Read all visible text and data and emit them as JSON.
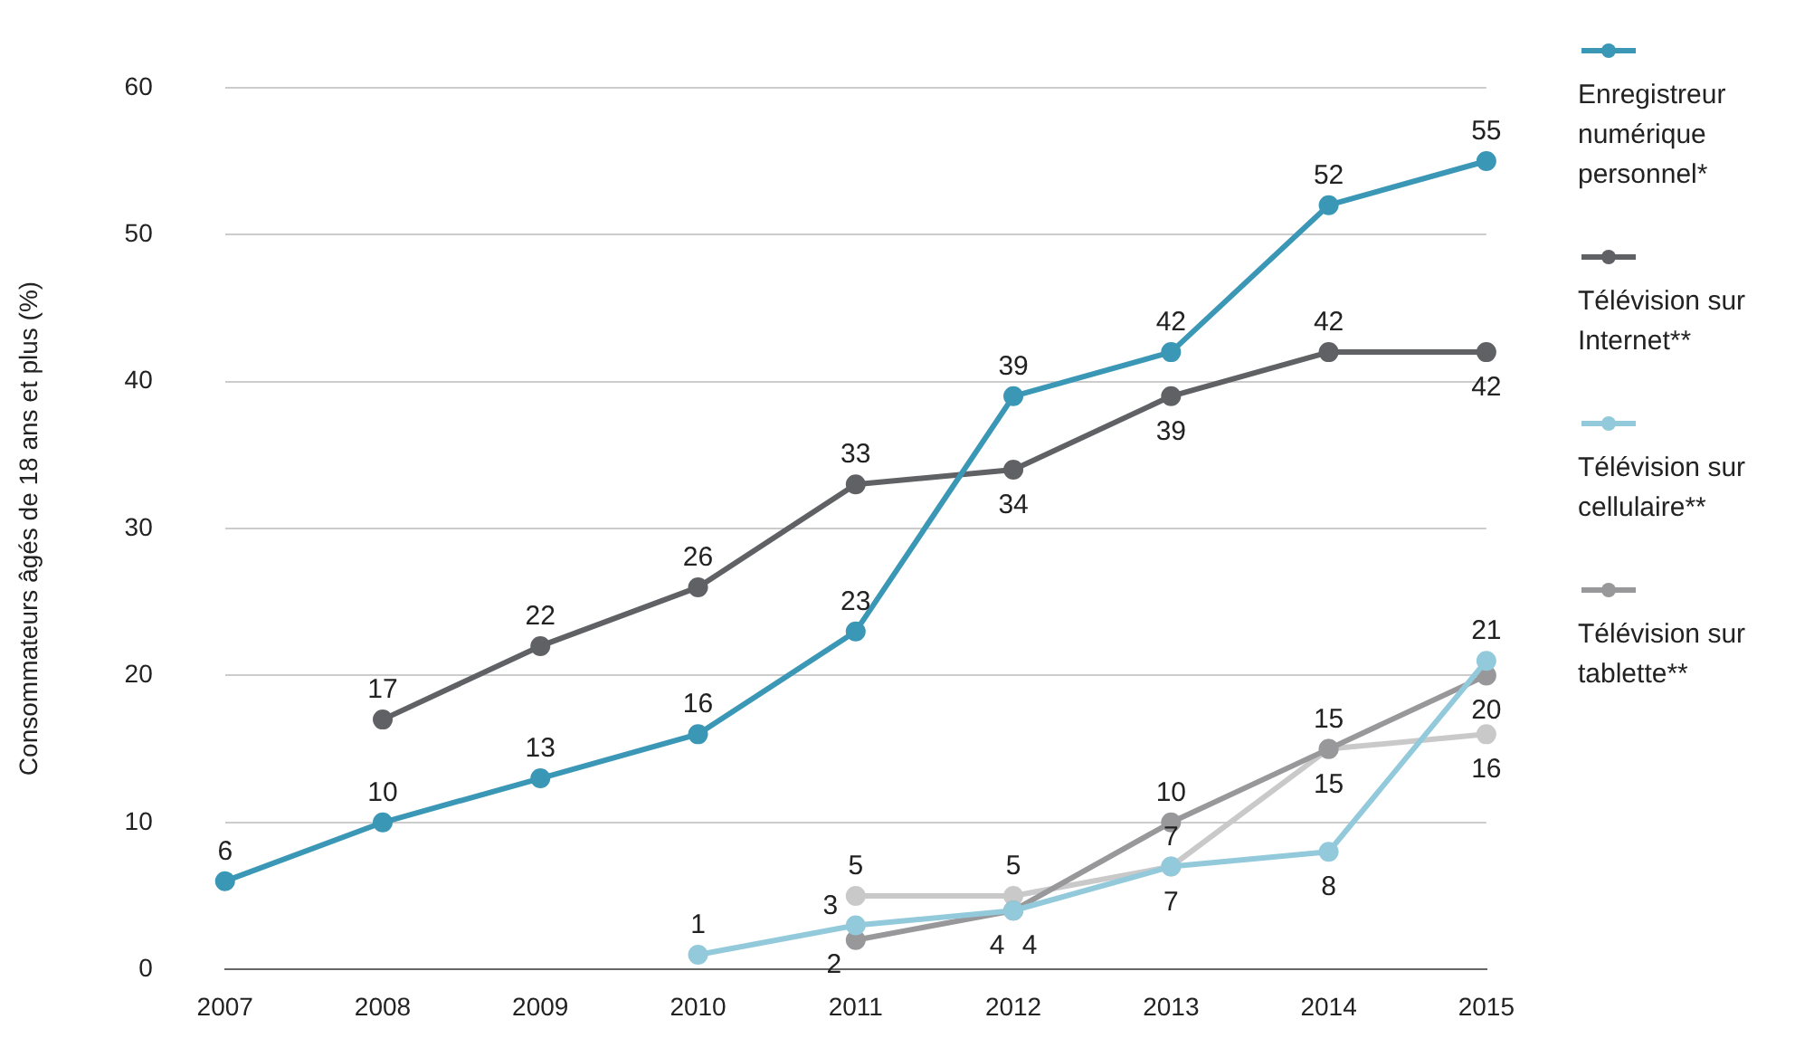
{
  "chart_data": {
    "type": "line",
    "ylabel": "Consommateurs âgés de 18 ans et plus (%)",
    "categories": [
      "2007",
      "2008",
      "2009",
      "2010",
      "2011",
      "2012",
      "2013",
      "2014",
      "2015"
    ],
    "series": [
      {
        "name": "Enregistreur numérique personnel*",
        "color": "#3a97b5",
        "values": [
          6,
          10,
          13,
          16,
          23,
          39,
          42,
          52,
          55
        ]
      },
      {
        "name": "Télévision sur Internet**",
        "color": "#5f6164",
        "values": [
          null,
          17,
          22,
          26,
          33,
          34,
          39,
          42,
          42
        ]
      },
      {
        "name": "Télévision sur cellulaire**",
        "color": "#93cadb",
        "values": [
          null,
          null,
          null,
          1,
          3,
          4,
          7,
          8,
          21
        ]
      },
      {
        "name": "Télévision sur tablette**",
        "color": "#98989a",
        "values": [
          null,
          null,
          null,
          null,
          2,
          4,
          10,
          15,
          20
        ]
      },
      {
        "color": "#c9c9c9",
        "values": [
          null,
          null,
          null,
          null,
          5,
          5,
          7,
          15,
          16
        ]
      }
    ],
    "ylim": [
      0,
      60
    ],
    "yticks": [
      0,
      10,
      20,
      30,
      40,
      50,
      60
    ],
    "grid": "y",
    "legend": "right",
    "marker": "circle",
    "line_style": "solid",
    "data_labels": true
  }
}
